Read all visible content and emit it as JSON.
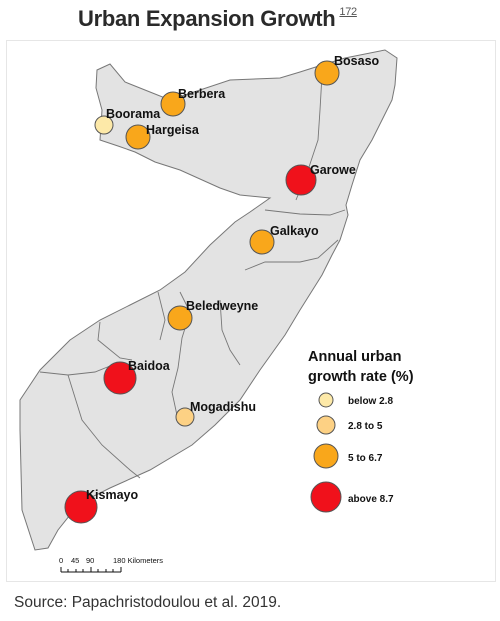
{
  "title": "Urban Expansion Growth",
  "title_ref": "172",
  "source": "Source: Papachristodoulou et al. 2019.",
  "colors": {
    "land": "#e3e3e3",
    "border": "#777777",
    "below": "#fde9a8",
    "low": "#fdd184",
    "mid": "#f9a71b",
    "high": "#f0111b"
  },
  "legend": {
    "title_line1": "Annual urban",
    "title_line2": "growth rate (%)",
    "items": [
      {
        "label": "below 2.8",
        "class": "below"
      },
      {
        "label": "2.8 to 5",
        "class": "low"
      },
      {
        "label": "5 to 6.7",
        "class": "mid"
      },
      {
        "label": "above 8.7",
        "class": "high"
      }
    ]
  },
  "cities": [
    {
      "name": "Bosaso",
      "class": "mid"
    },
    {
      "name": "Berbera",
      "class": "mid"
    },
    {
      "name": "Boorama",
      "class": "below"
    },
    {
      "name": "Hargeisa",
      "class": "mid"
    },
    {
      "name": "Garowe",
      "class": "high"
    },
    {
      "name": "Galkayo",
      "class": "mid"
    },
    {
      "name": "Beledweyne",
      "class": "mid"
    },
    {
      "name": "Baidoa",
      "class": "high"
    },
    {
      "name": "Mogadishu",
      "class": "low"
    },
    {
      "name": "Kismayo",
      "class": "high"
    }
  ],
  "scale": {
    "ticks": [
      "0",
      "45",
      "90",
      "180 Kilometers"
    ]
  }
}
